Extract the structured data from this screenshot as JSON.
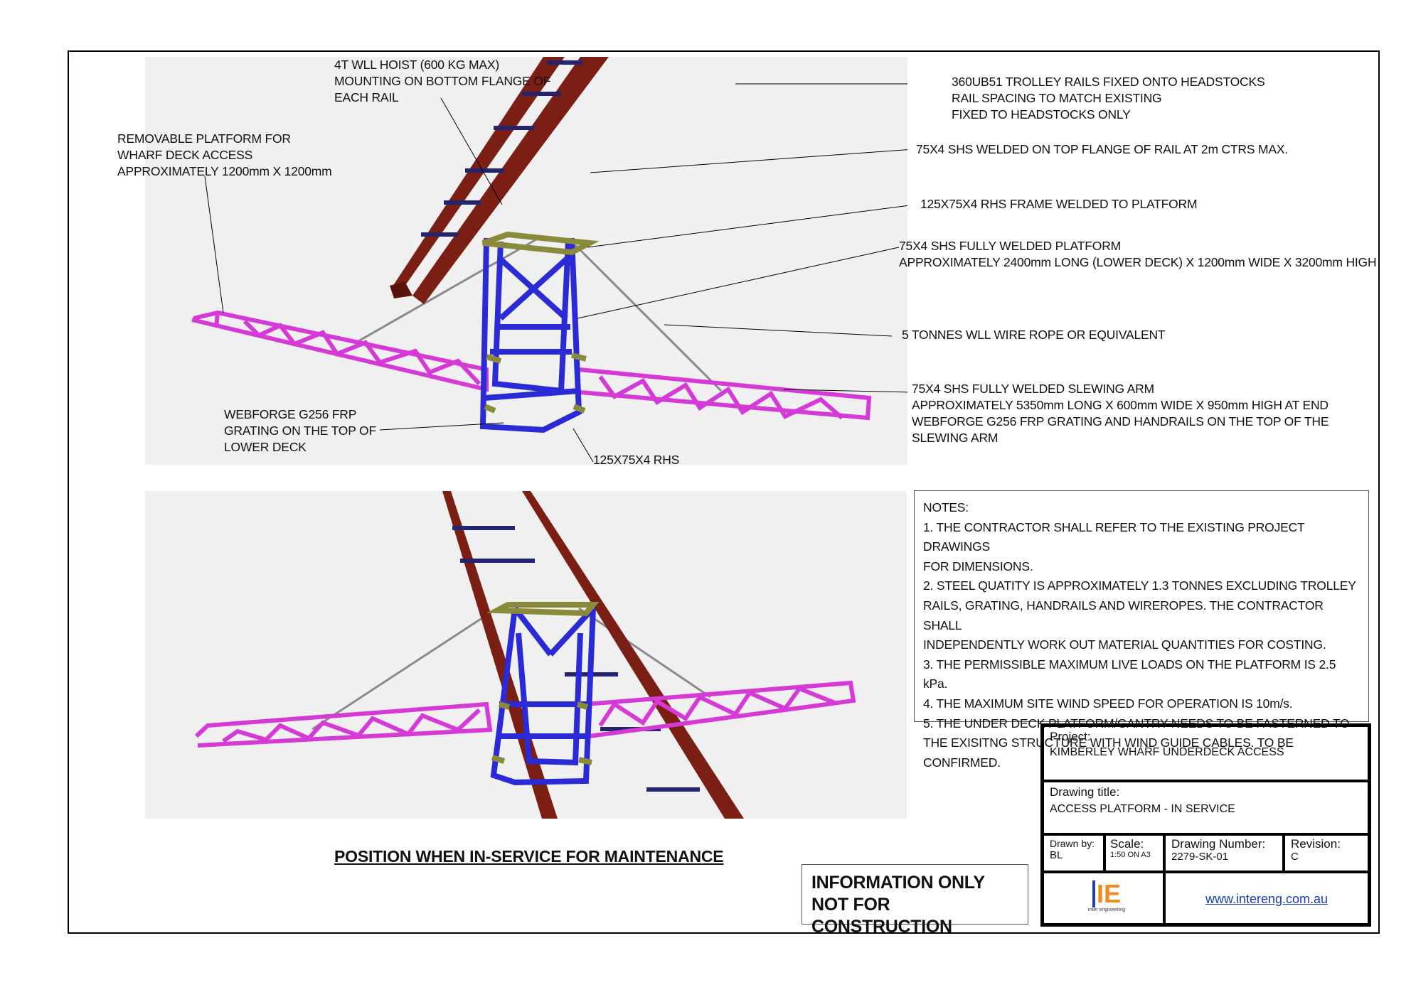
{
  "callouts": {
    "hoist": "4T WLL HOIST (600 KG MAX)\nMOUNTING ON BOTTOM FLANGE OF\nEACH RAIL",
    "removable_platform": "REMOVABLE PLATFORM FOR\nWHARF DECK ACCESS\nAPPROXIMATELY 1200mm X 1200mm",
    "trolley_rails": "360UB51 TROLLEY RAILS FIXED ONTO HEADSTOCKS\nRAIL SPACING TO MATCH EXISTING\nFIXED TO HEADSTOCKS ONLY",
    "shs_top_flange": "75X4 SHS WELDED ON TOP FLANGE OF RAIL AT 2m CTRS MAX.",
    "rhs_frame": "125X75X4 RHS FRAME WELDED TO PLATFORM",
    "welded_platform": "75X4 SHS FULLY WELDED PLATFORM\nAPPROXIMATELY 2400mm LONG (LOWER DECK) X 1200mm WIDE X 3200mm HIGH",
    "wire_rope": "5 TONNES WLL WIRE ROPE OR EQUIVALENT",
    "slewing_arm": "75X4 SHS FULLY WELDED SLEWING ARM\nAPPROXIMATELY 5350mm LONG X 600mm WIDE X 950mm HIGH AT END\nWEBFORGE G256 FRP GRATING AND HANDRAILS ON THE TOP OF THE\nSLEWING ARM",
    "grating": "WEBFORGE G256 FRP\nGRATING ON THE TOP OF\nLOWER DECK",
    "rhs": "125X75X4 RHS"
  },
  "notes": {
    "title": "NOTES:",
    "lines": [
      "1. THE CONTRACTOR SHALL REFER TO THE EXISTING PROJECT DRAWINGS",
      "FOR DIMENSIONS.",
      "2. STEEL QUATITY IS APPROXIMATELY 1.3 TONNES EXCLUDING TROLLEY",
      "RAILS, GRATING, HANDRAILS AND WIREROPES. THE CONTRACTOR SHALL",
      "INDEPENDENTLY WORK OUT MATERIAL QUANTITIES FOR COSTING.",
      "3. THE PERMISSIBLE MAXIMUM LIVE LOADS ON THE PLATFORM IS 2.5 kPa.",
      "4. THE MAXIMUM SITE WIND SPEED FOR OPERATION IS 10m/s.",
      "5. THE UNDER DECK PLATFORM/GANTRY NEEDS TO BE FASTERNED TO",
      "THE EXISITNG STRUCTURE WITH WIND GUIDE CABLES. TO BE CONFIRMED."
    ]
  },
  "heading": "POSITION WHEN IN-SERVICE FOR MAINTENANCE",
  "stamp": {
    "line1": "INFORMATION ONLY",
    "line2": "NOT FOR CONSTRUCTION"
  },
  "title_block": {
    "project_label": "Project:",
    "project_value": "KIMBERLEY WHARF UNDERDECK ACCESS",
    "drawing_title_label": "Drawing title:",
    "drawing_title_value": "ACCESS PLATFORM - IN SERVICE",
    "drawn_by_label": "Drawn by:",
    "drawn_by_value": "BL",
    "scale_label": "Scale:",
    "scale_value": "1:50 ON A3",
    "drawing_number_label": "Drawing Number:",
    "drawing_number_value": "2279-SK-01",
    "revision_label": "Revision:",
    "revision_value": "C",
    "logo_letter": "IE",
    "logo_caption": "inter engineering",
    "website": "www.intereng.com.au"
  },
  "colors": {
    "rail": "#7b1e14",
    "cross_member": "#24246e",
    "platform_frame": "#2a2ad6",
    "rhs_frame": "#8a8a3a",
    "slewing_arm": "#d63ad6",
    "wire_rope": "#777777",
    "view_background": "#f0f0f0",
    "logo_orange": "#f28a1e",
    "logo_blue": "#1f3fb0"
  }
}
